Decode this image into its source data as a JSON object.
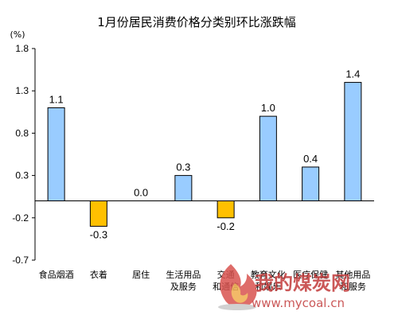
{
  "chart_data": {
    "type": "bar",
    "title": "1月份居民消费价格分类别环比涨跌幅",
    "ylabel": "(%)",
    "xlabel": "",
    "ylim": [
      -0.7,
      1.8
    ],
    "yticks": [
      "1.8",
      "1.3",
      "0.8",
      "0.3",
      "-0.2",
      "-0.7"
    ],
    "ytick_values": [
      1.8,
      1.3,
      0.8,
      0.3,
      -0.2,
      -0.7
    ],
    "categories": [
      [
        "食品烟酒"
      ],
      [
        "衣着"
      ],
      [
        "居住"
      ],
      [
        "生活用品",
        "及服务"
      ],
      [
        "交通",
        "和通信"
      ],
      [
        "教育文化",
        "和娱乐"
      ],
      [
        "医疗保健"
      ],
      [
        "其他用品",
        "和服务"
      ]
    ],
    "values": [
      1.1,
      -0.3,
      0.0,
      0.3,
      -0.2,
      1.0,
      0.4,
      1.4
    ],
    "data_labels": [
      "1.1",
      "-0.3",
      "0.0",
      "0.3",
      "-0.2",
      "1.0",
      "0.4",
      "1.4"
    ],
    "grid": false,
    "legend": "none",
    "colors": {
      "positive_fill": "#99ccff",
      "positive_stroke": "#000000",
      "negative_fill": "#ffc000",
      "negative_stroke": "#000000",
      "axis": "#000000"
    }
  },
  "watermark": {
    "text": "我的煤炭网",
    "url": "www.mycoal.cn",
    "color": "#c23b3b",
    "icon": "flame-logo-icon"
  }
}
